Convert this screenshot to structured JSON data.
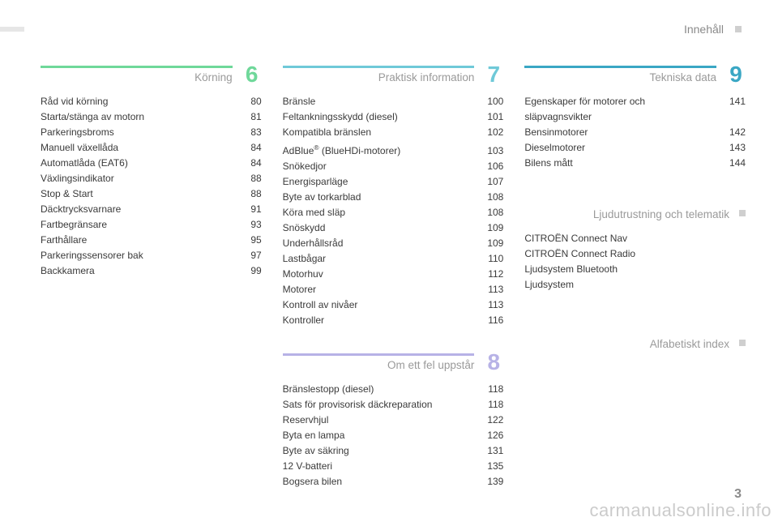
{
  "header": {
    "label": "Innehåll"
  },
  "sections": {
    "s6": {
      "num": "6",
      "title": "Körning",
      "bar_color": "#6fd89a",
      "items": [
        {
          "label": "Råd vid körning",
          "page": "80"
        },
        {
          "label": "Starta/stänga av motorn",
          "page": "81"
        },
        {
          "label": "Parkeringsbroms",
          "page": "83"
        },
        {
          "label": "Manuell växellåda",
          "page": "84"
        },
        {
          "label": "Automatlåda (EAT6)",
          "page": "84"
        },
        {
          "label": "Växlingsindikator",
          "page": "88"
        },
        {
          "label": "Stop & Start",
          "page": "88"
        },
        {
          "label": "Däcktrycksvarnare",
          "page": "91"
        },
        {
          "label": "Fartbegränsare",
          "page": "93"
        },
        {
          "label": "Farthållare",
          "page": "95"
        },
        {
          "label": "Parkeringssensorer bak",
          "page": "97"
        },
        {
          "label": "Backkamera",
          "page": "99"
        }
      ]
    },
    "s7": {
      "num": "7",
      "title": "Praktisk information",
      "bar_color": "#6fc9d8",
      "items": [
        {
          "label": "Bränsle",
          "page": "100"
        },
        {
          "label": "Feltankningsskydd (diesel)",
          "page": "101"
        },
        {
          "label": "Kompatibla bränslen",
          "page": "102"
        },
        {
          "label_html": "AdBlue<sup>®</sup> (BlueHDi-motorer)",
          "page": "103"
        },
        {
          "label": "Snökedjor",
          "page": "106"
        },
        {
          "label": "Energisparläge",
          "page": "107"
        },
        {
          "label": "Byte av torkarblad",
          "page": "108"
        },
        {
          "label": "Köra med släp",
          "page": "108"
        },
        {
          "label": "Snöskydd",
          "page": "109"
        },
        {
          "label": "Underhållsråd",
          "page": "109"
        },
        {
          "label": "Lastbågar",
          "page": "110"
        },
        {
          "label": "Motorhuv",
          "page": "112"
        },
        {
          "label": "Motorer",
          "page": "113"
        },
        {
          "label": "Kontroll av nivåer",
          "page": "113"
        },
        {
          "label": "Kontroller",
          "page": "116"
        }
      ]
    },
    "s8": {
      "num": "8",
      "title": "Om ett fel uppstår",
      "bar_color": "#b7b2e6",
      "items": [
        {
          "label": "Bränslestopp (diesel)",
          "page": "118"
        },
        {
          "label": "Sats för provisorisk däckreparation",
          "page": "118"
        },
        {
          "label": "Reservhjul",
          "page": "122"
        },
        {
          "label": "Byta en lampa",
          "page": "126"
        },
        {
          "label": "Byte av säkring",
          "page": "131"
        },
        {
          "label": "12 V-batteri",
          "page": "135"
        },
        {
          "label": "Bogsera bilen",
          "page": "139"
        }
      ]
    },
    "s9": {
      "num": "9",
      "title": "Tekniska data",
      "bar_color": "#3aa7c4",
      "items": [
        {
          "label": "Egenskaper för motorer och släpvagnsvikter",
          "page": "141"
        },
        {
          "label": "Bensinmotorer",
          "page": "142"
        },
        {
          "label": "Dieselmotorer",
          "page": "143"
        },
        {
          "label": "Bilens mått",
          "page": "144"
        }
      ]
    },
    "audio": {
      "title": "Ljudutrustning och telematik",
      "items": [
        {
          "label": "CITROËN Connect Nav"
        },
        {
          "label": "CITROËN Connect Radio"
        },
        {
          "label": "Ljudsystem Bluetooth"
        },
        {
          "label": "Ljudsystem"
        }
      ]
    },
    "index": {
      "title": "Alfabetiskt index"
    }
  },
  "page_number": "3",
  "watermark": "carmanualsonline.info"
}
